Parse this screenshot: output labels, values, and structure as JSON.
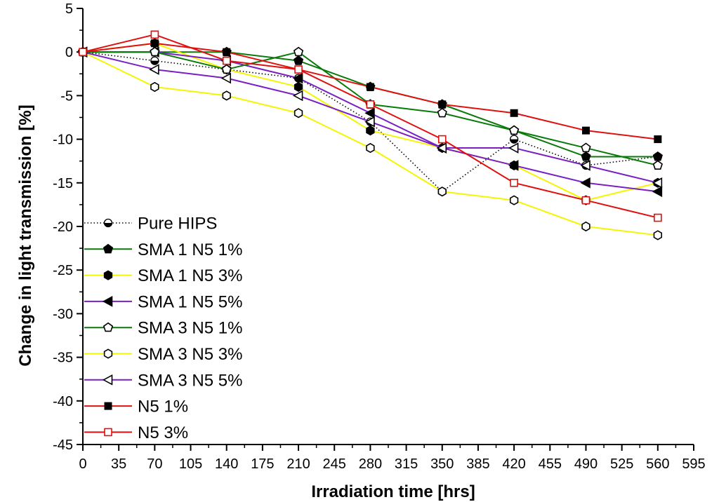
{
  "chart_data": {
    "type": "line",
    "title": "",
    "xlabel": "Irradiation time [hrs]",
    "ylabel": "Change in light transmission [%]",
    "xlim": [
      0,
      595
    ],
    "ylim": [
      -45,
      5
    ],
    "xticks": [
      0,
      35,
      70,
      105,
      140,
      175,
      210,
      245,
      280,
      315,
      350,
      385,
      420,
      455,
      490,
      525,
      560,
      595
    ],
    "yticks": [
      5,
      0,
      -5,
      -10,
      -15,
      -20,
      -25,
      -30,
      -35,
      -40,
      -45
    ],
    "legend_position": "bottom-left",
    "grid": false,
    "series": [
      {
        "name": "Pure HIPS",
        "color": "#000000",
        "line_style": "dotted",
        "marker": "half-circle",
        "x": [
          0,
          70,
          140,
          210,
          280,
          350,
          420,
          490,
          560
        ],
        "y": [
          0,
          -1,
          -2,
          -3,
          -8,
          -16,
          -10,
          -13,
          -12
        ]
      },
      {
        "name": "SMA 1 N5 1%",
        "color": "#0a7a0a",
        "line_style": "solid",
        "marker": "filled-pentagon",
        "x": [
          0,
          70,
          140,
          210,
          280,
          350,
          420,
          490,
          560
        ],
        "y": [
          0,
          0,
          0,
          -1,
          -4,
          -6,
          -9,
          -12,
          -12
        ]
      },
      {
        "name": "SMA 1 N5 3%",
        "color": "#f5f500",
        "line_style": "solid",
        "marker": "filled-hexagon",
        "x": [
          0,
          70,
          140,
          210,
          280,
          350,
          420,
          490,
          560
        ],
        "y": [
          0,
          1,
          -2,
          -4,
          -9,
          -11,
          -13,
          -17,
          -15
        ]
      },
      {
        "name": "SMA 1 N5 5%",
        "color": "#7a1fc4",
        "line_style": "solid",
        "marker": "filled-triangle-left",
        "x": [
          0,
          70,
          140,
          210,
          280,
          350,
          420,
          490,
          560
        ],
        "y": [
          0,
          0,
          -1,
          -3,
          -7,
          -11,
          -13,
          -15,
          -16
        ]
      },
      {
        "name": "SMA 3 N5 1%",
        "color": "#0a7a0a",
        "line_style": "solid",
        "marker": "open-pentagon",
        "x": [
          0,
          70,
          140,
          210,
          280,
          350,
          420,
          490,
          560
        ],
        "y": [
          0,
          0,
          -2,
          0,
          -6,
          -7,
          -9,
          -11,
          -13
        ]
      },
      {
        "name": "SMA 3 N5 3%",
        "color": "#f5f500",
        "line_style": "solid",
        "marker": "open-hexagon",
        "x": [
          0,
          70,
          140,
          210,
          280,
          350,
          420,
          490,
          560
        ],
        "y": [
          0,
          -4,
          -5,
          -7,
          -11,
          -16,
          -17,
          -20,
          -21
        ]
      },
      {
        "name": "SMA 3 N5 5%",
        "color": "#7a1fc4",
        "line_style": "solid",
        "marker": "open-triangle-left",
        "x": [
          0,
          70,
          140,
          210,
          280,
          350,
          420,
          490,
          560
        ],
        "y": [
          0,
          -2,
          -3,
          -5,
          -8,
          -11,
          -11,
          -13,
          -15
        ]
      },
      {
        "name": "N5 1%",
        "color": "#e01010",
        "line_style": "solid",
        "marker": "filled-square",
        "x": [
          0,
          70,
          140,
          210,
          280,
          350,
          420,
          490,
          560
        ],
        "y": [
          0,
          1,
          0,
          -2,
          -4,
          -6,
          -7,
          -9,
          -10
        ]
      },
      {
        "name": "N5 3%",
        "color": "#e01010",
        "line_style": "solid",
        "marker": "open-square",
        "x": [
          0,
          70,
          140,
          210,
          280,
          350,
          420,
          490,
          560
        ],
        "y": [
          0,
          2,
          -1,
          -2,
          -6,
          -10,
          -15,
          -17,
          -19
        ]
      }
    ]
  }
}
